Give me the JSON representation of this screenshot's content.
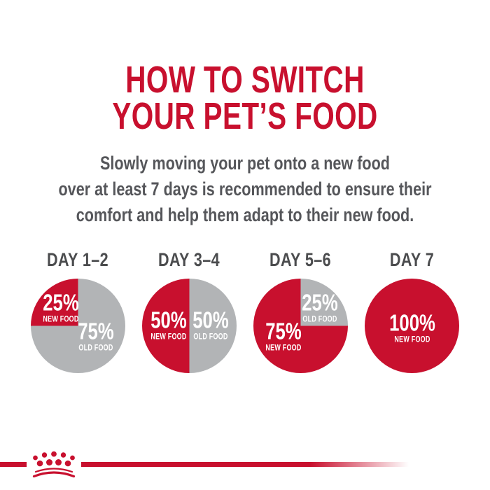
{
  "colors": {
    "brand_red": "#C8102E",
    "pie_gray": "#B2B4B6",
    "heading_gray": "#4B4C4E",
    "body_gray": "#55565A"
  },
  "header": {
    "title_lines": [
      "HOW TO SWITCH",
      "YOUR PET’S FOOD"
    ],
    "subtitle_lines": [
      "Slowly moving your pet onto a new food",
      "over at least 7 days is recommended to ensure their",
      "comfort and help them adapt to their new food."
    ]
  },
  "chart_data": {
    "type": "pie",
    "title": "HOW TO SWITCH YOUR PET’S FOOD",
    "legend_position": "inside-slices",
    "charts": [
      {
        "title": "DAY 1–2",
        "slices": [
          {
            "label": "OLD FOOD",
            "value": 75,
            "color": "#B2B4B6",
            "label_offset": [
              25,
              14
            ]
          },
          {
            "label": "NEW FOOD",
            "value": 25,
            "color": "#C8102E",
            "label_offset": [
              -25,
              -27
            ]
          }
        ]
      },
      {
        "title": "DAY 3–4",
        "slices": [
          {
            "label": "OLD FOOD",
            "value": 50,
            "color": "#B2B4B6",
            "label_offset": [
              30,
              -2
            ]
          },
          {
            "label": "NEW FOOD",
            "value": 50,
            "color": "#C8102E",
            "label_offset": [
              -30,
              -2
            ]
          }
        ]
      },
      {
        "title": "DAY 5–6",
        "slices": [
          {
            "label": "OLD FOOD",
            "value": 25,
            "color": "#B2B4B6",
            "label_offset": [
              27,
              -27
            ]
          },
          {
            "label": "NEW FOOD",
            "value": 75,
            "color": "#C8102E",
            "label_offset": [
              -25,
              14
            ]
          }
        ]
      },
      {
        "title": "DAY 7",
        "slices": [
          {
            "label": "NEW FOOD",
            "value": 100,
            "color": "#C8102E",
            "label_offset": [
              0,
              2
            ]
          }
        ]
      }
    ]
  },
  "footer": {
    "logo_icon": "royal-canin-crown-logo"
  }
}
